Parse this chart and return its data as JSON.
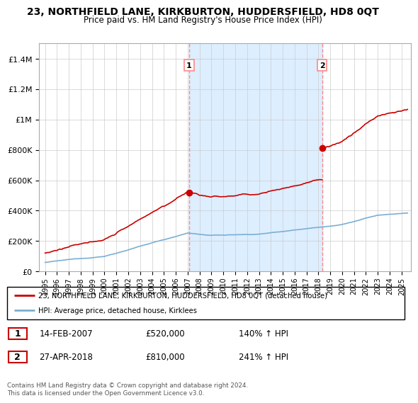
{
  "title": "23, NORTHFIELD LANE, KIRKBURTON, HUDDERSFIELD, HD8 0QT",
  "subtitle": "Price paid vs. HM Land Registry's House Price Index (HPI)",
  "legend_line1": "23, NORTHFIELD LANE, KIRKBURTON, HUDDERSFIELD, HD8 0QT (detached house)",
  "legend_line2": "HPI: Average price, detached house, Kirklees",
  "sale1_date": "14-FEB-2007",
  "sale1_price": "£520,000",
  "sale1_hpi": "140% ↑ HPI",
  "sale1_year": 2007.12,
  "sale1_value": 520000,
  "sale2_date": "27-APR-2018",
  "sale2_price": "£810,000",
  "sale2_hpi": "241% ↑ HPI",
  "sale2_year": 2018.32,
  "sale2_value": 810000,
  "footer": "Contains HM Land Registry data © Crown copyright and database right 2024.\nThis data is licensed under the Open Government Licence v3.0.",
  "red_color": "#cc0000",
  "blue_color": "#7bafd4",
  "shade_color": "#ddeeff",
  "dashed_color": "#ff8888",
  "ylim_max": 1500000,
  "xlim_min": 1994.5,
  "xlim_max": 2025.8
}
